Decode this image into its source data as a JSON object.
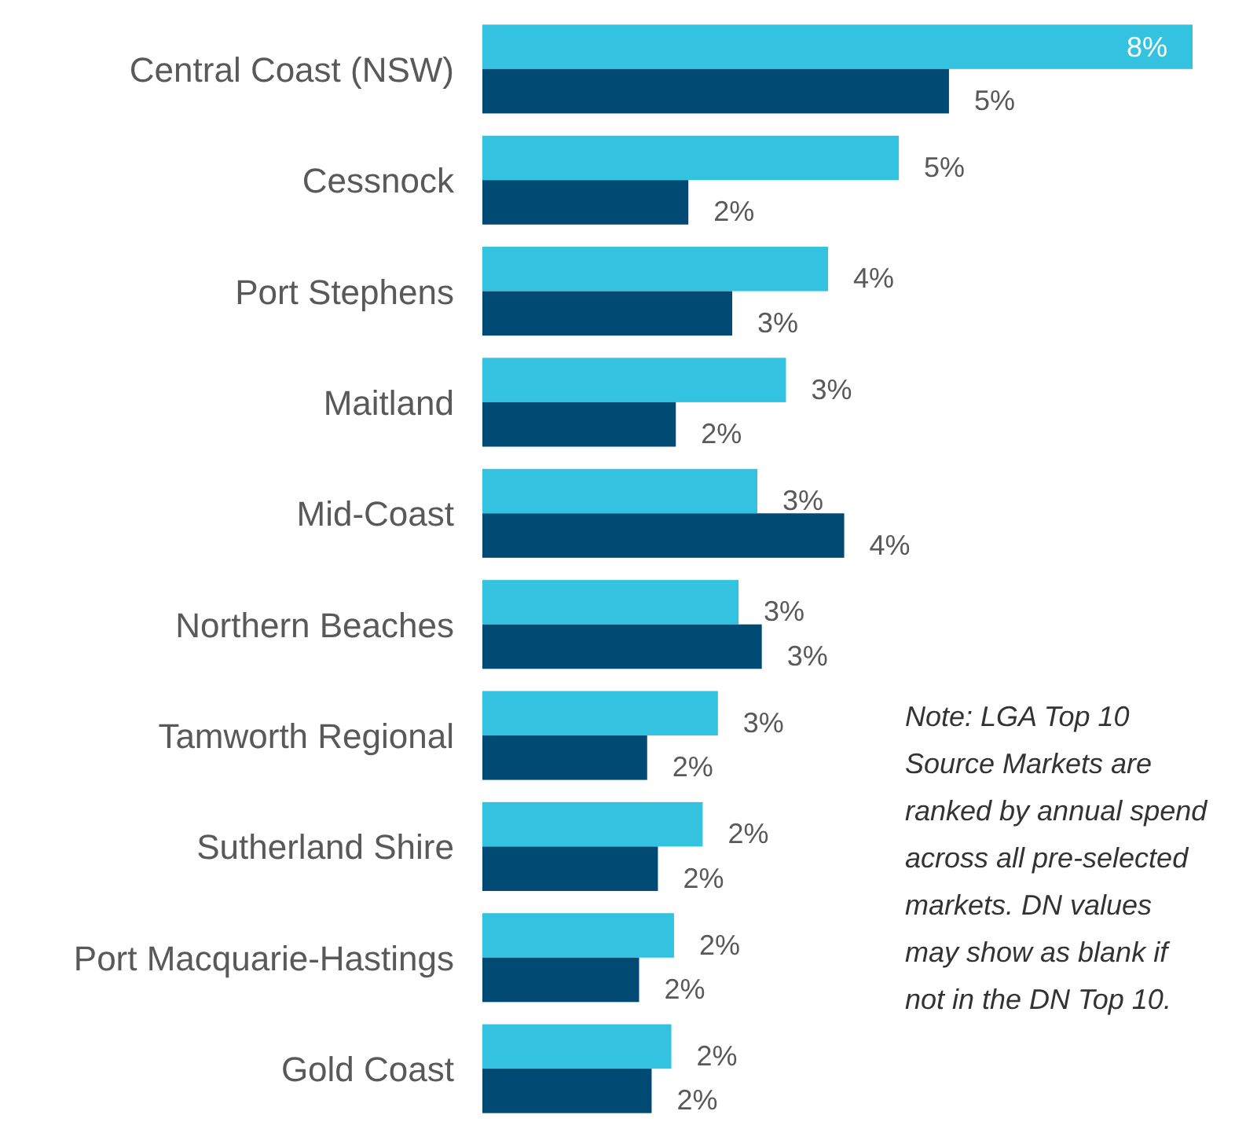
{
  "chart_data": {
    "type": "bar",
    "orientation": "horizontal",
    "categories": [
      "Central Coast (NSW)",
      "Cessnock",
      "Port Stephens",
      "Maitland",
      "Mid-Coast",
      "Northern Beaches",
      "Tamworth Regional",
      "Sutherland Shire",
      "Port Macquarie-Hastings",
      "Gold Coast"
    ],
    "series": [
      {
        "color": "#33c3e0",
        "values": [
          7.93,
          4.65,
          3.86,
          3.39,
          3.07,
          2.86,
          2.63,
          2.46,
          2.14,
          2.11
        ],
        "value_labels": [
          "8%",
          "5%",
          "4%",
          "3%",
          "3%",
          "3%",
          "3%",
          "2%",
          "2%",
          "2%"
        ]
      },
      {
        "color": "#004a74",
        "values": [
          5.21,
          2.3,
          2.79,
          2.16,
          4.04,
          3.12,
          1.84,
          1.96,
          1.75,
          1.89
        ],
        "value_labels": [
          "5%",
          "2%",
          "3%",
          "2%",
          "4%",
          "3%",
          "2%",
          "2%",
          "2%",
          "2%"
        ]
      }
    ],
    "xlim": [
      0,
      7.93
    ],
    "tick_labels": "y",
    "annotations": [
      "Note: LGA Top 10 Source Markets are ranked by annual spend across all pre-selected markets. DN values may show as blank if not in the DN Top 10."
    ]
  }
}
